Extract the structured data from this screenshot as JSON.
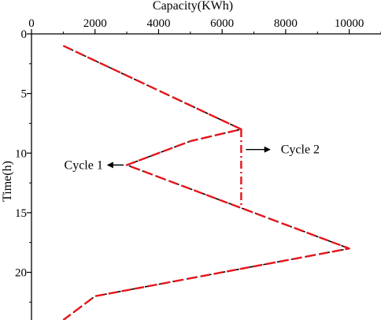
{
  "chart_data": {
    "type": "line",
    "title": "",
    "xlabel": "Capacity(KWh)",
    "ylabel": "Time(h)",
    "xlim": [
      0,
      11000
    ],
    "ylim": [
      24,
      0
    ],
    "x_ticks": [
      0,
      2000,
      4000,
      6000,
      8000,
      10000
    ],
    "y_ticks": [
      0,
      5,
      10,
      15,
      20
    ],
    "x_axis_position": "top",
    "y_axis_inverted": true,
    "grid": false,
    "series": [
      {
        "name": "",
        "style": "black dashed",
        "color": "#000000",
        "points": [
          {
            "x": 1000,
            "y": 1
          },
          {
            "x": 6600,
            "y": 8
          },
          {
            "x": 5000,
            "y": 9
          },
          {
            "x": 3000,
            "y": 11
          },
          {
            "x": 10000,
            "y": 18
          },
          {
            "x": 2000,
            "y": 22
          },
          {
            "x": 1000,
            "y": 24
          }
        ]
      },
      {
        "name": "",
        "style": "red dashed",
        "color": "#e8141a",
        "points": [
          {
            "x": 1000,
            "y": 1
          },
          {
            "x": 6600,
            "y": 8
          },
          {
            "x": 5000,
            "y": 9
          },
          {
            "x": 3000,
            "y": 11
          },
          {
            "x": 10000,
            "y": 18
          },
          {
            "x": 2000,
            "y": 22
          },
          {
            "x": 1000,
            "y": 24
          }
        ]
      },
      {
        "name": "",
        "style": "red dash-dot",
        "color": "#e8141a",
        "points": [
          {
            "x": 6600,
            "y": 8
          },
          {
            "x": 6600,
            "y": 14.5
          }
        ]
      }
    ],
    "annotations": [
      {
        "text": "Cycle 1",
        "arrow_from": {
          "x": 2900,
          "y": 11
        },
        "arrow_to": {
          "x": 2400,
          "y": 11
        },
        "text_side": "left"
      },
      {
        "text": "Cycle 2",
        "arrow_from": {
          "x": 6750,
          "y": 9.7
        },
        "arrow_to": {
          "x": 7500,
          "y": 9.7
        },
        "text_side": "right"
      }
    ]
  }
}
